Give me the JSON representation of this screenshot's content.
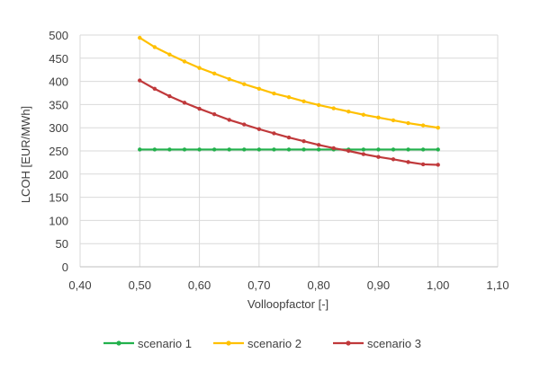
{
  "chart_data": {
    "type": "line",
    "title": "",
    "xlabel": "Volloopfactor [-]",
    "ylabel": "LCOH [EUR/MWh]",
    "xlim": [
      0.4,
      1.1
    ],
    "ylim": [
      0,
      500
    ],
    "x_ticks": [
      "0,40",
      "0,50",
      "0,60",
      "0,70",
      "0,80",
      "0,90",
      "1,00",
      "1,10"
    ],
    "y_ticks": [
      "0",
      "50",
      "100",
      "150",
      "200",
      "250",
      "300",
      "350",
      "400",
      "450",
      "500"
    ],
    "x_tick_values": [
      0.4,
      0.5,
      0.6,
      0.7,
      0.8,
      0.9,
      1.0,
      1.1
    ],
    "y_tick_values": [
      0,
      50,
      100,
      150,
      200,
      250,
      300,
      350,
      400,
      450,
      500
    ],
    "grid": true,
    "legend": "bottom",
    "x": [
      0.5,
      0.525,
      0.55,
      0.575,
      0.6,
      0.625,
      0.65,
      0.675,
      0.7,
      0.725,
      0.75,
      0.775,
      0.8,
      0.825,
      0.85,
      0.875,
      0.9,
      0.925,
      0.95,
      0.975,
      1.0
    ],
    "series": [
      {
        "name": "scenario 1",
        "color": "#22b14c",
        "values": [
          253,
          253,
          253,
          253,
          253,
          253,
          253,
          253,
          253,
          253,
          253,
          253,
          253,
          253,
          253,
          253,
          253,
          253,
          253,
          253,
          253
        ]
      },
      {
        "name": "scenario 2",
        "color": "#ffc000",
        "values": [
          494,
          474,
          458,
          443,
          429,
          417,
          405,
          394,
          384,
          374,
          366,
          357,
          349,
          342,
          335,
          328,
          322,
          316,
          310,
          305,
          300
        ]
      },
      {
        "name": "scenario 3",
        "color": "#c0393b",
        "values": [
          402,
          384,
          368,
          354,
          341,
          329,
          317,
          307,
          297,
          288,
          279,
          271,
          263,
          256,
          250,
          243,
          237,
          232,
          226,
          221,
          220
        ]
      }
    ]
  }
}
